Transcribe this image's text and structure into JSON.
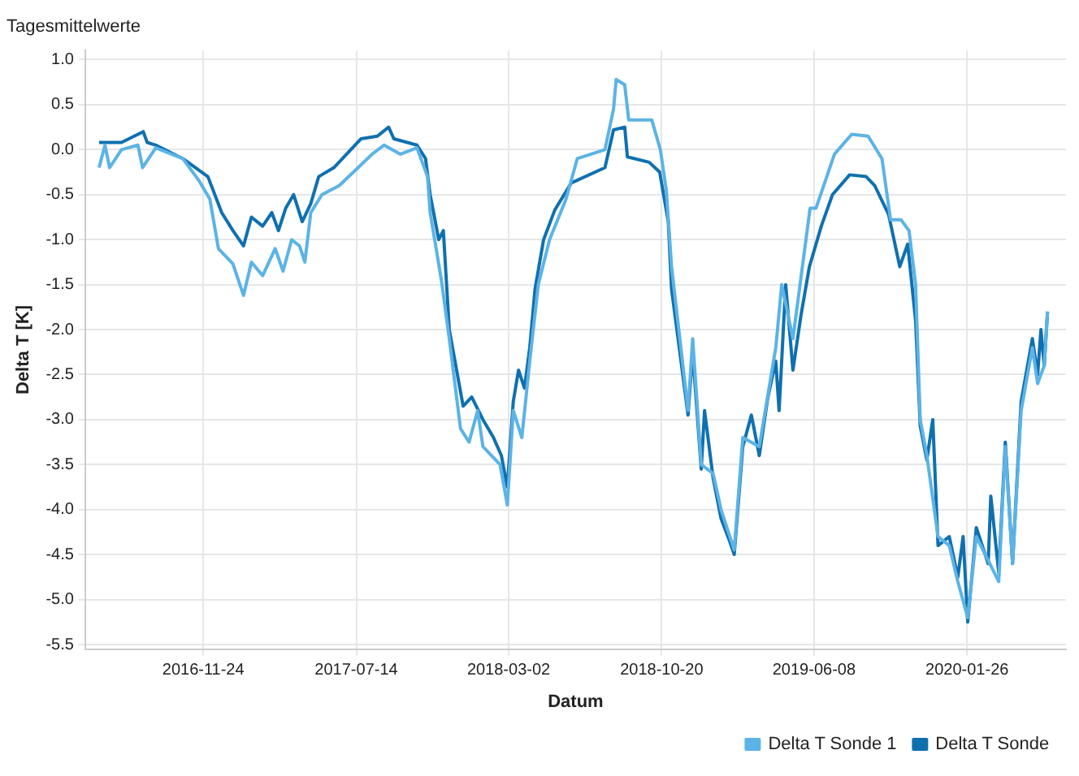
{
  "chart_data": {
    "type": "line",
    "title": "Tagesmittelwerte",
    "xlabel": "Datum",
    "ylabel": "Delta T [K]",
    "xlim": [
      "2016-05-29",
      "2020-06-24"
    ],
    "xticks": [
      "2016-11-24",
      "2017-07-14",
      "2018-03-02",
      "2018-10-20",
      "2019-06-08",
      "2020-01-26"
    ],
    "ylim": [
      -5.55,
      1.1
    ],
    "yticks": [
      {
        "value": 1,
        "label": "1.0"
      },
      {
        "value": 0.5,
        "label": "0.5"
      },
      {
        "value": 0,
        "label": "0.0"
      },
      {
        "value": -0.5,
        "label": "-0.5"
      },
      {
        "value": -1,
        "label": "-1.0"
      },
      {
        "value": -1.5,
        "label": "-1.5"
      },
      {
        "value": -2,
        "label": "-2.0"
      },
      {
        "value": -2.5,
        "label": "-2.5"
      },
      {
        "value": -3,
        "label": "-3.0"
      },
      {
        "value": -3.5,
        "label": "-3.5"
      },
      {
        "value": -4,
        "label": "-4.0"
      },
      {
        "value": -4.5,
        "label": "-4.5"
      },
      {
        "value": -5,
        "label": "-5.0"
      },
      {
        "value": -5.5,
        "label": "-5.5"
      }
    ],
    "grid": true,
    "legend": "bottom right",
    "marker": "none",
    "line_style": "solid",
    "series": [
      {
        "name": "Delta T Sonde 1",
        "color": "#5bb3e6",
        "x": [
          "2016-06-19",
          "2016-06-28",
          "2016-07-05",
          "2016-07-23",
          "2016-08-17",
          "2016-08-24",
          "2016-09-13",
          "2016-10-24",
          "2016-11-18",
          "2016-12-04",
          "2016-12-17",
          "2017-01-08",
          "2017-01-24",
          "2017-02-05",
          "2017-02-22",
          "2017-03-13",
          "2017-03-25",
          "2017-04-07",
          "2017-04-19",
          "2017-04-27",
          "2017-05-06",
          "2017-05-23",
          "2017-06-18",
          "2017-07-21",
          "2017-08-07",
          "2017-08-25",
          "2017-09-19",
          "2017-10-14",
          "2017-10-30",
          "2017-11-03",
          "2017-11-20",
          "2017-12-02",
          "2017-12-19",
          "2018-01-01",
          "2018-01-14",
          "2018-01-22",
          "2018-02-17",
          "2018-02-28",
          "2018-03-09",
          "2018-03-22",
          "2018-04-03",
          "2018-04-16",
          "2018-05-03",
          "2018-05-28",
          "2018-06-14",
          "2018-07-26",
          "2018-08-08",
          "2018-08-12",
          "2018-08-25",
          "2018-08-31",
          "2018-10-05",
          "2018-10-18",
          "2018-10-27",
          "2018-11-04",
          "2018-11-29",
          "2018-12-06",
          "2018-12-19",
          "2019-01-06",
          "2019-01-18",
          "2019-02-07",
          "2019-02-20",
          "2019-03-17",
          "2019-04-11",
          "2019-04-20",
          "2019-05-07",
          "2019-06-02",
          "2019-06-11",
          "2019-07-09",
          "2019-08-04",
          "2019-08-29",
          "2019-09-19",
          "2019-10-02",
          "2019-10-18",
          "2019-10-30",
          "2019-11-09",
          "2019-11-16",
          "2019-11-26",
          "2019-12-13",
          "2019-12-30",
          "2020-01-12",
          "2020-01-27",
          "2020-02-09",
          "2020-03-14",
          "2020-03-24",
          "2020-04-04",
          "2020-04-17",
          "2020-05-04",
          "2020-05-12",
          "2020-05-22",
          "2020-05-27"
        ],
        "values": [
          -0.2,
          0.05,
          -0.2,
          0.0,
          0.05,
          -0.2,
          0.02,
          -0.1,
          -0.35,
          -0.55,
          -1.1,
          -1.27,
          -1.62,
          -1.25,
          -1.4,
          -1.1,
          -1.35,
          -1.0,
          -1.07,
          -1.25,
          -0.7,
          -0.5,
          -0.4,
          -0.17,
          -0.05,
          0.05,
          -0.05,
          0.02,
          -0.3,
          -0.7,
          -1.45,
          -2.1,
          -3.1,
          -3.25,
          -2.9,
          -3.3,
          -3.5,
          -3.95,
          -2.9,
          -3.2,
          -2.35,
          -1.5,
          -1.0,
          -0.55,
          -0.1,
          0.0,
          0.45,
          0.78,
          0.72,
          0.33,
          0.33,
          0.0,
          -0.45,
          -1.3,
          -2.9,
          -2.1,
          -3.5,
          -3.6,
          -4.0,
          -4.45,
          -3.2,
          -3.3,
          -2.2,
          -1.5,
          -2.1,
          -0.65,
          -0.65,
          -0.05,
          0.17,
          0.15,
          -0.1,
          -0.78,
          -0.78,
          -0.9,
          -1.5,
          -3.0,
          -3.4,
          -4.3,
          -4.4,
          -4.8,
          -5.2,
          -4.3,
          -4.8,
          -3.3,
          -4.6,
          -2.9,
          -2.2,
          -2.6,
          -2.4,
          -1.8
        ]
      },
      {
        "name": "Delta T Sonde",
        "color": "#0f70b0",
        "x": [
          "2016-06-19",
          "2016-07-23",
          "2016-08-25",
          "2016-08-31",
          "2016-09-13",
          "2016-10-24",
          "2016-12-01",
          "2016-12-22",
          "2017-01-08",
          "2017-01-24",
          "2017-02-05",
          "2017-02-22",
          "2017-03-08",
          "2017-03-18",
          "2017-03-29",
          "2017-04-10",
          "2017-04-23",
          "2017-05-06",
          "2017-05-18",
          "2017-06-10",
          "2017-07-21",
          "2017-08-15",
          "2017-09-01",
          "2017-09-09",
          "2017-10-14",
          "2017-10-27",
          "2017-11-03",
          "2017-11-16",
          "2017-11-23",
          "2017-12-02",
          "2017-12-23",
          "2018-01-05",
          "2018-01-22",
          "2018-02-07",
          "2018-02-19",
          "2018-02-28",
          "2018-03-09",
          "2018-03-17",
          "2018-03-26",
          "2018-04-03",
          "2018-04-11",
          "2018-04-24",
          "2018-05-11",
          "2018-06-05",
          "2018-07-26",
          "2018-08-08",
          "2018-08-25",
          "2018-08-29",
          "2018-10-01",
          "2018-10-17",
          "2018-10-30",
          "2018-11-04",
          "2018-11-21",
          "2018-11-29",
          "2018-12-06",
          "2018-12-19",
          "2018-12-24",
          "2019-01-06",
          "2019-01-18",
          "2019-01-31",
          "2019-02-07",
          "2019-02-20",
          "2019-03-05",
          "2019-03-17",
          "2019-03-30",
          "2019-04-11",
          "2019-04-16",
          "2019-04-26",
          "2019-05-07",
          "2019-05-19",
          "2019-06-01",
          "2019-06-19",
          "2019-07-06",
          "2019-08-01",
          "2019-08-26",
          "2019-09-08",
          "2019-09-29",
          "2019-10-16",
          "2019-10-28",
          "2019-11-09",
          "2019-11-16",
          "2019-11-26",
          "2019-12-05",
          "2019-12-13",
          "2019-12-30",
          "2020-01-12",
          "2020-01-20",
          "2020-01-27",
          "2020-02-09",
          "2020-02-27",
          "2020-03-02",
          "2020-03-14",
          "2020-03-24",
          "2020-04-04",
          "2020-04-17",
          "2020-05-04",
          "2020-05-12",
          "2020-05-17",
          "2020-05-22",
          "2020-05-27"
        ],
        "values": [
          0.08,
          0.08,
          0.2,
          0.08,
          0.05,
          -0.1,
          -0.3,
          -0.7,
          -0.9,
          -1.07,
          -0.75,
          -0.85,
          -0.7,
          -0.9,
          -0.65,
          -0.5,
          -0.8,
          -0.6,
          -0.3,
          -0.2,
          0.12,
          0.15,
          0.25,
          0.12,
          0.05,
          -0.1,
          -0.5,
          -1.0,
          -0.9,
          -2.0,
          -2.85,
          -2.75,
          -3.0,
          -3.2,
          -3.4,
          -3.75,
          -2.8,
          -2.45,
          -2.65,
          -2.2,
          -1.55,
          -1.0,
          -0.67,
          -0.37,
          -0.2,
          0.22,
          0.25,
          -0.08,
          -0.14,
          -0.25,
          -0.8,
          -1.55,
          -2.5,
          -2.95,
          -2.25,
          -3.55,
          -2.9,
          -3.65,
          -4.1,
          -4.35,
          -4.5,
          -3.3,
          -2.95,
          -3.4,
          -2.75,
          -2.35,
          -2.9,
          -1.5,
          -2.45,
          -1.85,
          -1.3,
          -0.85,
          -0.5,
          -0.28,
          -0.3,
          -0.4,
          -0.72,
          -1.3,
          -1.05,
          -1.9,
          -3.07,
          -3.45,
          -3.0,
          -4.4,
          -4.3,
          -4.75,
          -4.3,
          -5.25,
          -4.2,
          -4.6,
          -3.85,
          -4.7,
          -3.25,
          -4.6,
          -2.8,
          -2.1,
          -2.5,
          -2.0,
          -2.4,
          -1.8
        ]
      }
    ]
  }
}
